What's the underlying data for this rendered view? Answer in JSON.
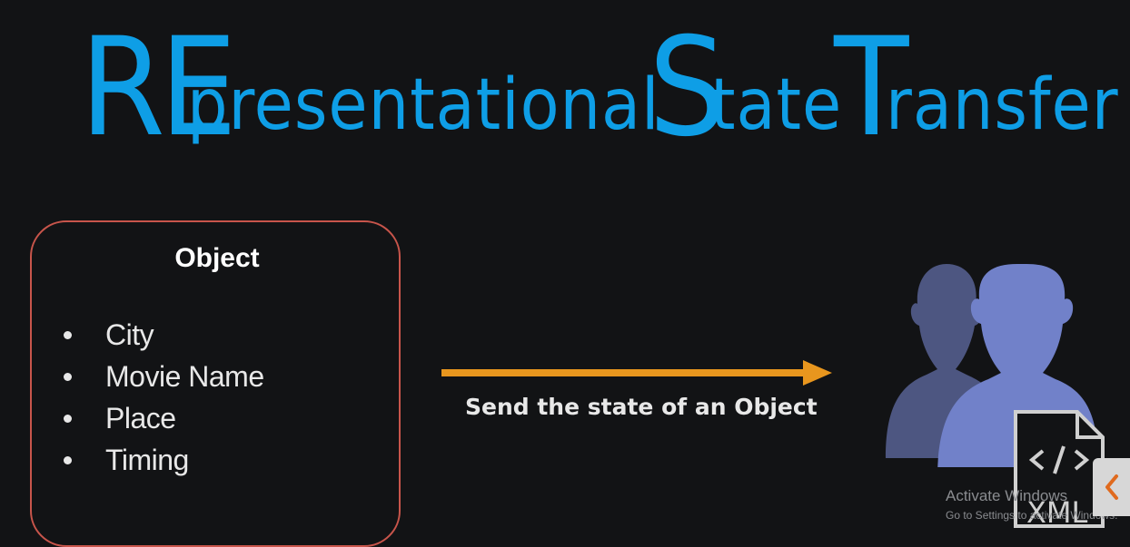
{
  "title": {
    "re": "RE",
    "presentational": "presentational",
    "s": "S",
    "tate": "tate",
    "t": "T",
    "ransfer": "ransfer"
  },
  "object_card": {
    "heading": "Object",
    "items": [
      "City",
      "Movie Name",
      "Place",
      "Timing"
    ]
  },
  "arrow": {
    "label": "Send the state of an Object",
    "color": "#e8961e"
  },
  "colors": {
    "title": "#0e9ee6",
    "card_border": "#c8554b",
    "user_front": "#7181c9",
    "user_back": "#4d5681"
  },
  "icons": [
    "users-icon",
    "xml-file-icon",
    "chevron-left-icon"
  ],
  "overlay": {
    "watermark": "Activate Windows",
    "watermark_sub": "Go to Settings to activate Windows.",
    "xml_label": "XML"
  }
}
